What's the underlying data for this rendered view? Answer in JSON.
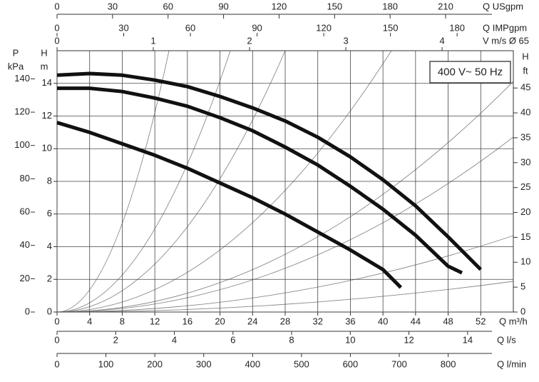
{
  "chart_data": {
    "type": "line",
    "annotation": "400 V~ 50 Hz",
    "xlabel": "Q m³/h",
    "xlim": [
      0,
      56
    ],
    "xticks": [
      0,
      4,
      8,
      12,
      16,
      20,
      24,
      28,
      32,
      36,
      40,
      44,
      48,
      52
    ],
    "ylabel": "H",
    "yunit": "m",
    "ylim": [
      0,
      16
    ],
    "yticks": [
      0,
      2,
      4,
      6,
      8,
      10,
      12,
      14
    ],
    "grid": true,
    "series": [
      {
        "color": "#111111",
        "x": [
          0,
          4,
          8,
          12,
          16,
          20,
          24,
          28,
          32,
          36,
          40,
          44,
          48,
          52
        ],
        "values": [
          14.5,
          14.6,
          14.5,
          14.2,
          13.8,
          13.2,
          12.5,
          11.7,
          10.7,
          9.5,
          8.1,
          6.5,
          4.6,
          2.6
        ]
      },
      {
        "color": "#111111",
        "x": [
          0,
          4,
          8,
          12,
          16,
          20,
          24,
          28,
          32,
          36,
          40,
          44,
          48,
          49.7
        ],
        "values": [
          13.7,
          13.7,
          13.5,
          13.1,
          12.6,
          11.9,
          11.1,
          10.1,
          9.0,
          7.7,
          6.3,
          4.7,
          2.8,
          2.4
        ]
      },
      {
        "color": "#111111",
        "x": [
          0,
          4,
          8,
          12,
          16,
          20,
          24,
          28,
          32,
          36,
          40,
          42.2
        ],
        "values": [
          11.6,
          11.0,
          10.3,
          9.6,
          8.8,
          7.9,
          7.0,
          6.0,
          4.9,
          3.8,
          2.6,
          1.5
        ]
      }
    ],
    "extra_axes": [
      {
        "side": "top",
        "label": "Q USgpm",
        "lim": [
          0,
          246.6
        ],
        "ticks": [
          0,
          30,
          60,
          90,
          120,
          150,
          180,
          210
        ]
      },
      {
        "side": "top",
        "label": "Q IMPgpm",
        "lim": [
          0,
          205.3
        ],
        "ticks": [
          0,
          30,
          60,
          90,
          120,
          150,
          180
        ]
      },
      {
        "side": "top",
        "label": "V m/s Ø 65",
        "lim": [
          0,
          4.74
        ],
        "ticks": [
          0,
          1,
          2,
          3,
          4
        ]
      },
      {
        "side": "left",
        "label": "P",
        "unit": "kPa",
        "lim": [
          0,
          156.9
        ],
        "ticks": [
          0,
          20,
          40,
          60,
          80,
          100,
          120,
          140
        ]
      },
      {
        "side": "right",
        "label": "H",
        "unit": "ft",
        "lim": [
          0,
          52.49
        ],
        "ticks": [
          0,
          5,
          10,
          15,
          20,
          25,
          30,
          35,
          40,
          45
        ]
      },
      {
        "side": "bottom",
        "label": "Q l/s",
        "lim": [
          0,
          15.56
        ],
        "ticks": [
          0,
          2,
          4,
          6,
          8,
          10,
          12,
          14
        ]
      },
      {
        "side": "bottom",
        "label": "Q l/min",
        "lim": [
          0,
          933.3
        ],
        "ticks": [
          0,
          100,
          200,
          300,
          400,
          500,
          600,
          700,
          800
        ]
      }
    ]
  }
}
